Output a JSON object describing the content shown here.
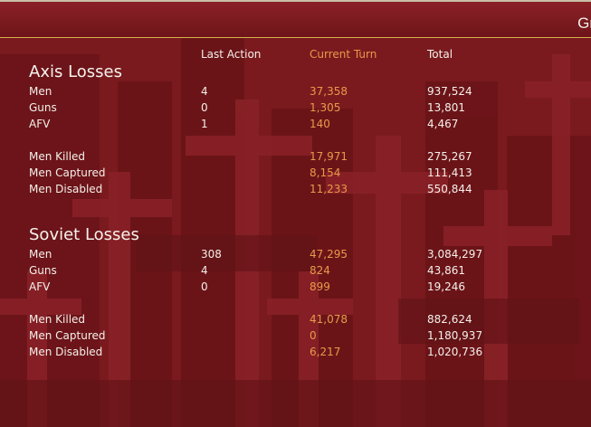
{
  "header": {
    "title": "Gr"
  },
  "columns": {
    "last_action": "Last Action",
    "current_turn": "Current Turn",
    "total": "Total"
  },
  "axis": {
    "title": "Axis Losses",
    "rows": [
      {
        "label": "Men",
        "last": "4",
        "current": "37,358",
        "total": "937,524"
      },
      {
        "label": "Guns",
        "last": "0",
        "current": "1,305",
        "total": "13,801"
      },
      {
        "label": "AFV",
        "last": "1",
        "current": "140",
        "total": "4,467"
      },
      {
        "label": "Men Killed",
        "last": "",
        "current": "17,971",
        "total": "275,267"
      },
      {
        "label": "Men Captured",
        "last": "",
        "current": "8,154",
        "total": "111,413"
      },
      {
        "label": "Men Disabled",
        "last": "",
        "current": "11,233",
        "total": "550,844"
      }
    ]
  },
  "soviet": {
    "title": "Soviet Losses",
    "rows": [
      {
        "label": "Men",
        "last": "308",
        "current": "47,295",
        "total": "3,084,297"
      },
      {
        "label": "Guns",
        "last": "4",
        "current": "824",
        "total": "43,861"
      },
      {
        "label": "AFV",
        "last": "0",
        "current": "899",
        "total": "19,246"
      },
      {
        "label": "Men Killed",
        "last": "",
        "current": "41,078",
        "total": "882,624"
      },
      {
        "label": "Men Captured",
        "last": "",
        "current": "0",
        "total": "1,180,937"
      },
      {
        "label": "Men Disabled",
        "last": "",
        "current": "6,217",
        "total": "1,020,736"
      }
    ]
  },
  "colors": {
    "background": "#7a1a1e",
    "accent": "#e89a4a",
    "text": "#f4f0ea",
    "divider": "#d8b24a"
  }
}
